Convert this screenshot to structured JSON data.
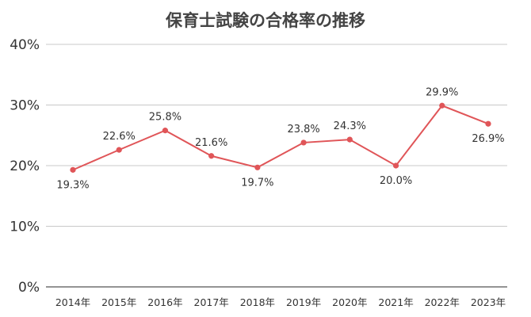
{
  "chart_data": {
    "type": "line",
    "title": "保育士試験の合格率の推移",
    "xlabel": "",
    "ylabel": "",
    "categories": [
      "2014年",
      "2015年",
      "2016年",
      "2017年",
      "2018年",
      "2019年",
      "2020年",
      "2021年",
      "2022年",
      "2023年"
    ],
    "series": [
      {
        "name": "合格率",
        "values": [
          19.3,
          22.6,
          25.8,
          21.6,
          19.7,
          23.8,
          24.3,
          20.0,
          29.9,
          26.9
        ],
        "labels": [
          "19.3%",
          "22.6%",
          "25.8%",
          "21.6%",
          "19.7%",
          "23.8%",
          "24.3%",
          "20.0%",
          "29.9%",
          "26.9%"
        ],
        "label_positions": [
          "below",
          "above",
          "above",
          "above",
          "below",
          "above",
          "above",
          "below",
          "above",
          "below"
        ]
      }
    ],
    "ylim": [
      0,
      40
    ],
    "yticks": [
      0,
      10,
      20,
      30,
      40
    ],
    "ytick_labels": [
      "0%",
      "10%",
      "20%",
      "30%",
      "40%"
    ],
    "grid": true,
    "legend": "none",
    "colors": {
      "line": "#e05558",
      "marker": "#e05558"
    }
  }
}
